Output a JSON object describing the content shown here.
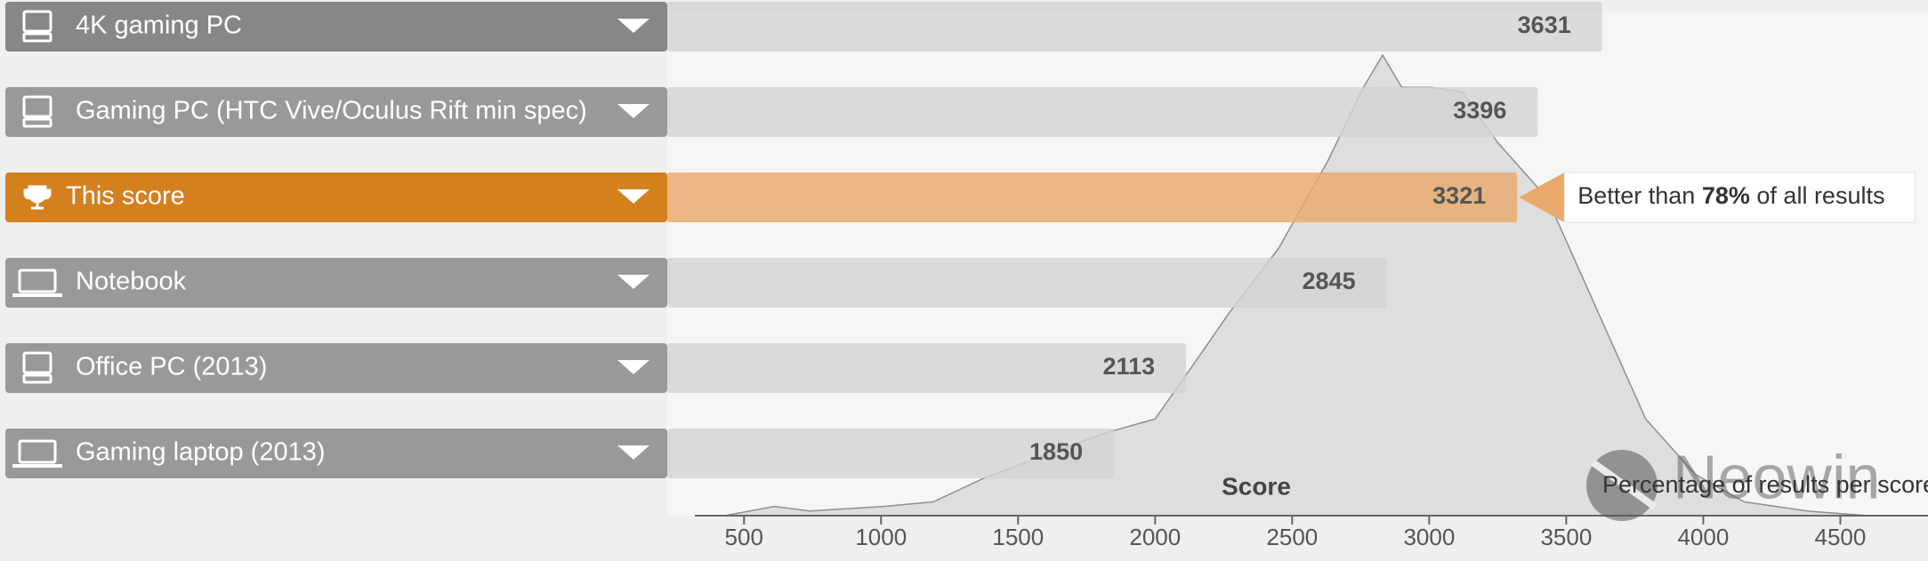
{
  "chart_data": {
    "type": "bar",
    "categories": [
      "4K gaming PC",
      "Gaming PC (HTC Vive/Oculus Rift min spec)",
      "This score",
      "Notebook",
      "Office PC (2013)",
      "Gaming laptop (2013)"
    ],
    "icons": [
      "desktop",
      "desktop",
      "trophy",
      "laptop",
      "desktop",
      "laptop"
    ],
    "values": [
      3631,
      3396,
      3321,
      2845,
      2113,
      1850
    ],
    "highlight": 2,
    "color": "#d3d3d3",
    "highlight_color": "#e9aa6b",
    "label_color": "#999999",
    "highlight_label_color": "#d5801f",
    "xlim": [
      220,
      4820
    ],
    "xticks": [
      500,
      1000,
      1500,
      2000,
      2500,
      3000,
      3500,
      4000,
      4500
    ],
    "xlabel": "Score",
    "distribution": {
      "label": "Percentage of results per score",
      "x": [
        430,
        610,
        740,
        1010,
        1190,
        1370,
        1590,
        1820,
        2000,
        2130,
        2270,
        2450,
        2630,
        2760,
        2830,
        2900,
        3010,
        3120,
        3250,
        3430,
        3610,
        3790,
        3970,
        4150,
        4380,
        4600
      ],
      "y": [
        0,
        2,
        1,
        2,
        3,
        8,
        13,
        18,
        21,
        32,
        44,
        58,
        77,
        93,
        100,
        93,
        93,
        92,
        81,
        69,
        45,
        21,
        9,
        3,
        1,
        0
      ],
      "ylim": [
        0,
        100
      ],
      "color": "#dedede"
    },
    "callout": {
      "prefix": "Better than",
      "percent": "78%",
      "suffix": "of all results"
    },
    "watermark": "Neowin"
  }
}
